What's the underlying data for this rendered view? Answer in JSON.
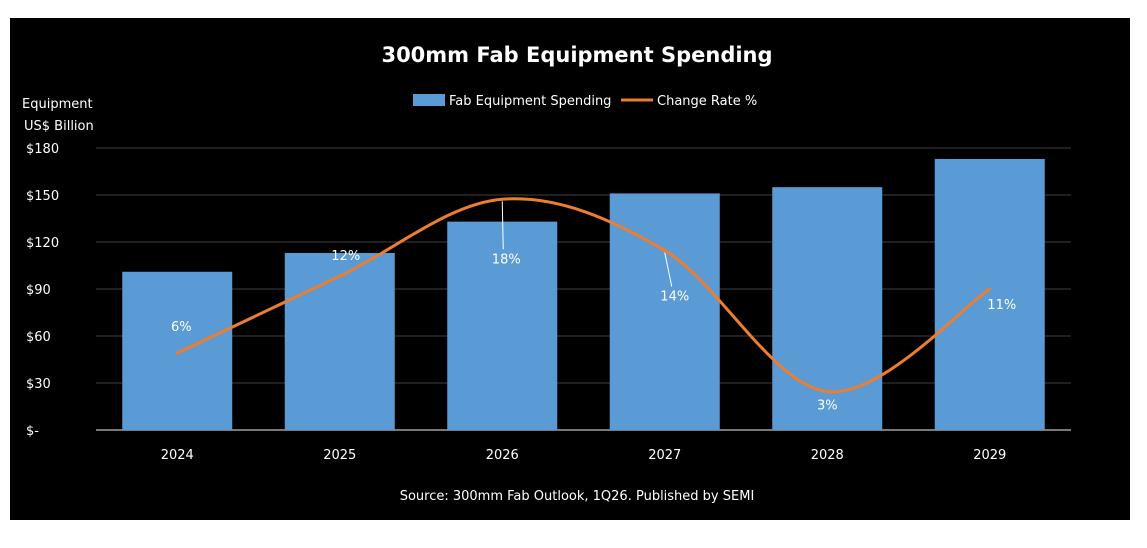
{
  "chart_data": {
    "type": "bar",
    "title": "300mm Fab Equipment Spending",
    "ylabel": [
      "Equipment",
      "US$ Billion"
    ],
    "categories": [
      "2024",
      "2025",
      "2026",
      "2027",
      "2028",
      "2029"
    ],
    "ylim": [
      0,
      180
    ],
    "yticks": [
      0,
      30,
      60,
      90,
      120,
      150,
      180
    ],
    "ytick_labels": [
      "$-",
      "$30",
      "$60",
      "$90",
      "$120",
      "$150",
      "$180"
    ],
    "grid": true,
    "legend_position": "top-center",
    "series": [
      {
        "name": "Fab Equipment Spending",
        "type": "bar",
        "color": "#5b9bd5",
        "values": [
          101,
          113,
          133,
          151,
          155,
          173
        ]
      },
      {
        "name": "Change Rate %",
        "type": "line",
        "color": "#ed7d31",
        "values": [
          6,
          12,
          18,
          14,
          3,
          11
        ],
        "labels": [
          "6%",
          "12%",
          "18%",
          "14%",
          "3%",
          "11%"
        ]
      }
    ],
    "source": "Source: 300mm Fab Outlook, 1Q26. Published by SEMI"
  },
  "colors": {
    "background": "#000000",
    "bar": "#5b9bd5",
    "line": "#ed7d31",
    "text": "#ffffff",
    "grid": "#404040"
  }
}
